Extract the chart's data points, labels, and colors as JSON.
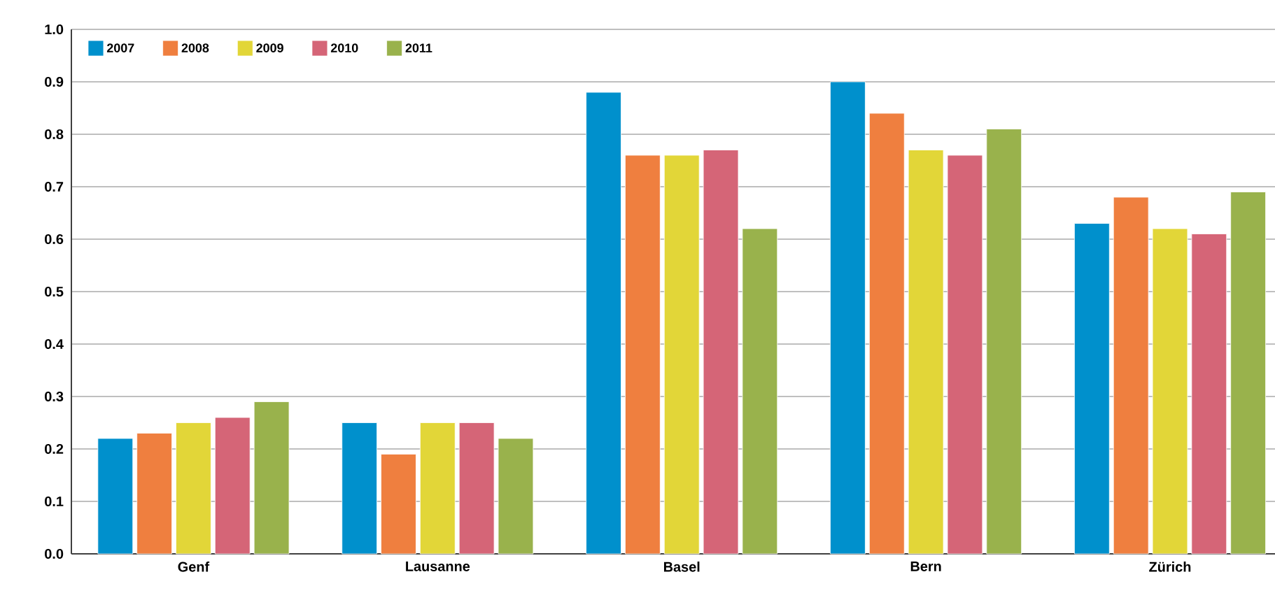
{
  "chart_data": {
    "type": "bar",
    "categories": [
      "Genf",
      "Lausanne",
      "Basel",
      "Bern",
      "Zürich"
    ],
    "series": [
      {
        "name": "2007",
        "color": "#0090cc",
        "values": [
          0.22,
          0.25,
          0.88,
          0.9,
          0.63
        ]
      },
      {
        "name": "2008",
        "color": "#ef7f3f",
        "values": [
          0.23,
          0.19,
          0.76,
          0.84,
          0.68
        ]
      },
      {
        "name": "2009",
        "color": "#e2d638",
        "values": [
          0.25,
          0.25,
          0.76,
          0.77,
          0.62
        ]
      },
      {
        "name": "2010",
        "color": "#d56577",
        "values": [
          0.26,
          0.25,
          0.77,
          0.76,
          0.61
        ]
      },
      {
        "name": "2011",
        "color": "#99b24c",
        "values": [
          0.29,
          0.22,
          0.62,
          0.81,
          0.69
        ]
      }
    ],
    "ylim": [
      0,
      1.0
    ],
    "yticks": [
      {
        "value": 0,
        "label": "0.0"
      },
      0.1,
      0.2,
      0.3,
      0.4,
      0.5,
      0.6,
      0.7,
      0.8,
      0.9,
      {
        "value": 1.0,
        "label": "1.0"
      }
    ],
    "grid": "y",
    "legend": "top left"
  }
}
